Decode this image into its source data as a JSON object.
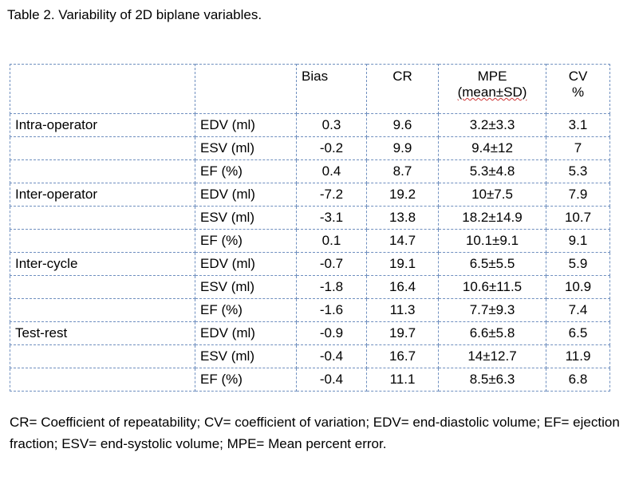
{
  "caption": "Table 2. Variability of 2D biplane variables.",
  "headers": {
    "bias": "Bias",
    "cr": "CR",
    "mpe_line1": "MPE",
    "mpe_line2": "(mean±SD)",
    "cv_line1": "CV",
    "cv_line2": "%"
  },
  "groups": [
    {
      "label": "Intra-operator",
      "rows": [
        {
          "variable": "EDV (ml)",
          "bias": "0.3",
          "cr": "9.6",
          "mpe": "3.2±3.3",
          "cv": "3.1"
        },
        {
          "variable": "ESV (ml)",
          "bias": "-0.2",
          "cr": "9.9",
          "mpe": "9.4±12",
          "cv": "7"
        },
        {
          "variable": "EF (%)",
          "bias": "0.4",
          "cr": "8.7",
          "mpe": "5.3±4.8",
          "cv": "5.3"
        }
      ]
    },
    {
      "label": "Inter-operator",
      "rows": [
        {
          "variable": "EDV (ml)",
          "bias": "-7.2",
          "cr": "19.2",
          "mpe": "10±7.5",
          "cv": "7.9"
        },
        {
          "variable": "ESV (ml)",
          "bias": "-3.1",
          "cr": "13.8",
          "mpe": "18.2±14.9",
          "cv": "10.7"
        },
        {
          "variable": "EF (%)",
          "bias": "0.1",
          "cr": "14.7",
          "mpe": "10.1±9.1",
          "cv": "9.1"
        }
      ]
    },
    {
      "label": "Inter-cycle",
      "rows": [
        {
          "variable": "EDV (ml)",
          "bias": "-0.7",
          "cr": "19.1",
          "mpe": "6.5±5.5",
          "cv": "5.9"
        },
        {
          "variable": "ESV (ml)",
          "bias": "-1.8",
          "cr": "16.4",
          "mpe": "10.6±11.5",
          "cv": "10.9"
        },
        {
          "variable": "EF (%)",
          "bias": "-1.6",
          "cr": "11.3",
          "mpe": "7.7±9.3",
          "cv": "7.4"
        }
      ]
    },
    {
      "label": "Test-rest",
      "rows": [
        {
          "variable": "EDV (ml)",
          "bias": "-0.9",
          "cr": "19.7",
          "mpe": "6.6±5.8",
          "cv": "6.5"
        },
        {
          "variable": "ESV (ml)",
          "bias": "-0.4",
          "cr": "16.7",
          "mpe": "14±12.7",
          "cv": "11.9"
        },
        {
          "variable": "EF (%)",
          "bias": "-0.4",
          "cr": "11.1",
          "mpe": "8.5±6.3",
          "cv": "6.8"
        }
      ]
    }
  ],
  "footnote": "CR= Coefficient of repeatability; CV= coefficient of variation; EDV= end-diastolic volume; EF= ejection fraction; ESV= end-systolic volume; MPE= Mean percent error."
}
